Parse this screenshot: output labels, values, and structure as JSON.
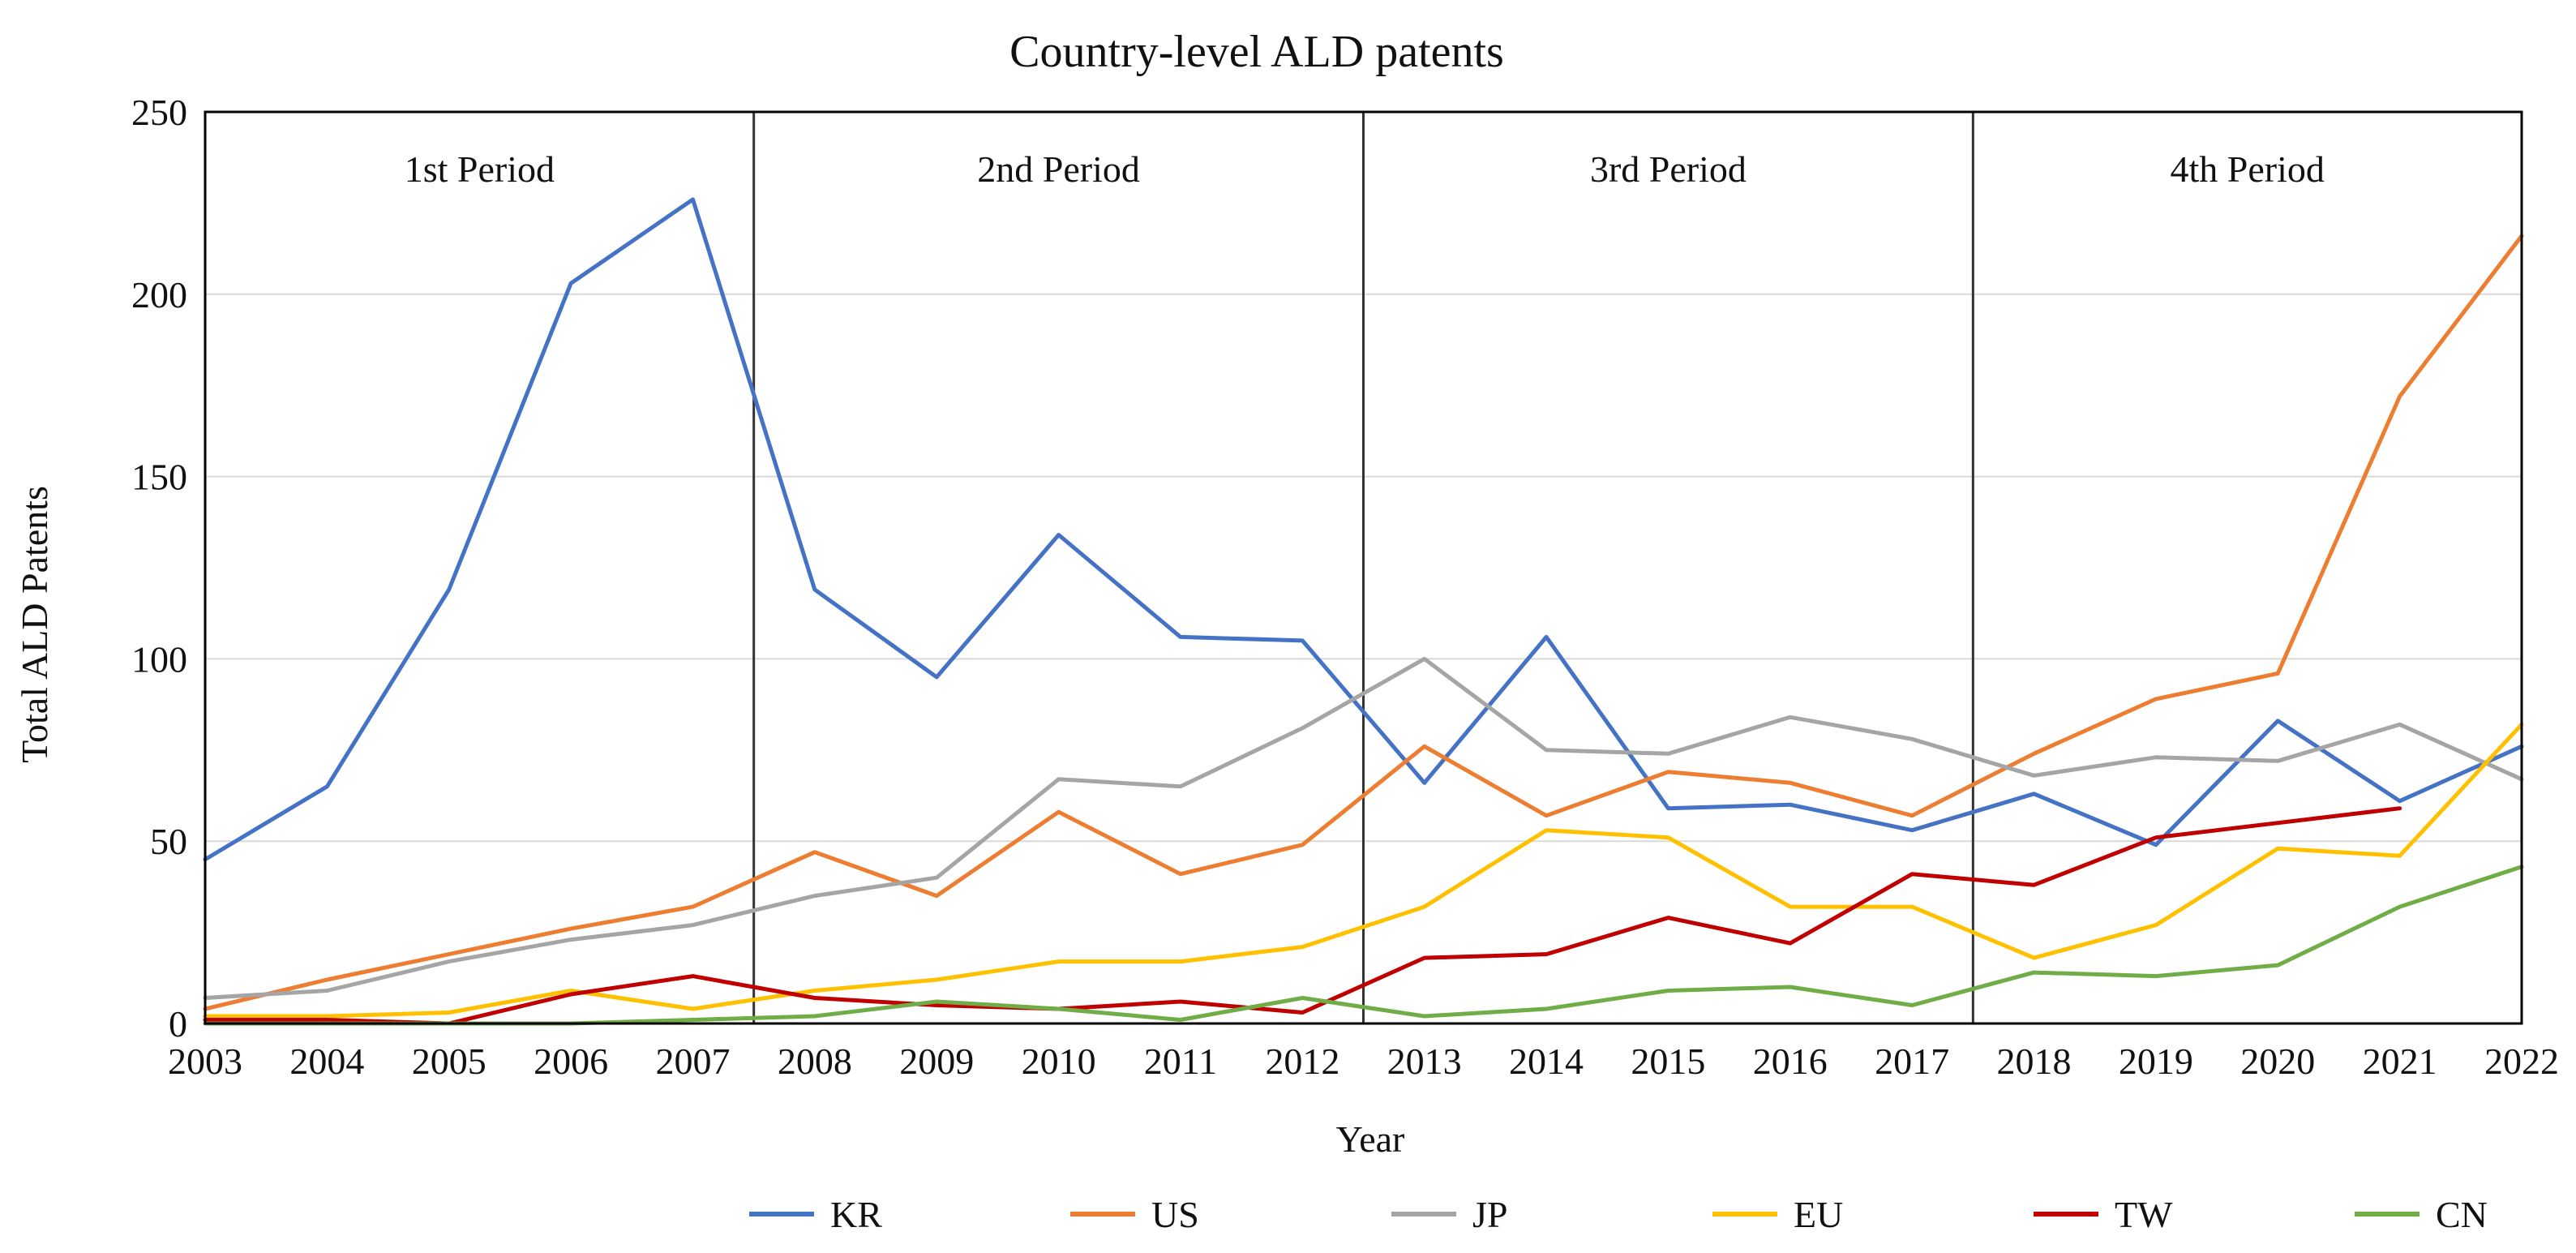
{
  "chart_data": {
    "type": "line",
    "title": "Country-level ALD patents",
    "xlabel": "Year",
    "ylabel": "Total ALD Patents",
    "ylim": [
      0,
      250
    ],
    "yticks": [
      0,
      50,
      100,
      150,
      200,
      250
    ],
    "grid": true,
    "legend_position": "bottom",
    "categories": [
      "2003",
      "2004",
      "2005",
      "2006",
      "2007",
      "2008",
      "2009",
      "2010",
      "2011",
      "2012",
      "2013",
      "2014",
      "2015",
      "2016",
      "2017",
      "2018",
      "2019",
      "2020",
      "2021",
      "2022"
    ],
    "periods": [
      {
        "label": "1st Period",
        "start_index": 0,
        "end_index": 4
      },
      {
        "label": "2nd Period",
        "start_index": 5,
        "end_index": 9
      },
      {
        "label": "3rd Period",
        "start_index": 10,
        "end_index": 14
      },
      {
        "label": "4th Period",
        "start_index": 15,
        "end_index": 19
      }
    ],
    "series": [
      {
        "name": "KR",
        "color": "#4472C4",
        "values": [
          45,
          65,
          119,
          203,
          226,
          119,
          95,
          134,
          106,
          105,
          66,
          106,
          59,
          60,
          53,
          63,
          49,
          83,
          61,
          76
        ]
      },
      {
        "name": "US",
        "color": "#ED7D31",
        "values": [
          4,
          12,
          19,
          26,
          32,
          47,
          35,
          58,
          41,
          49,
          76,
          57,
          69,
          66,
          57,
          74,
          89,
          96,
          172,
          216
        ]
      },
      {
        "name": "JP",
        "color": "#A5A5A5",
        "values": [
          7,
          9,
          17,
          23,
          27,
          35,
          40,
          67,
          65,
          81,
          100,
          75,
          74,
          84,
          78,
          68,
          73,
          72,
          82,
          67
        ]
      },
      {
        "name": "EU",
        "color": "#FFC000",
        "values": [
          2,
          2,
          3,
          9,
          4,
          9,
          12,
          17,
          17,
          21,
          32,
          53,
          51,
          32,
          32,
          18,
          27,
          48,
          46,
          82
        ]
      },
      {
        "name": "TW",
        "color": "#C00000",
        "values": [
          1,
          1,
          0,
          8,
          13,
          7,
          5,
          4,
          6,
          3,
          18,
          19,
          29,
          22,
          41,
          38,
          51,
          55,
          59,
          null
        ]
      },
      {
        "name": "CN",
        "color": "#70AD47",
        "values": [
          0,
          0,
          0,
          0,
          1,
          2,
          6,
          4,
          1,
          7,
          2,
          4,
          9,
          10,
          5,
          14,
          13,
          16,
          32,
          43
        ]
      }
    ]
  }
}
